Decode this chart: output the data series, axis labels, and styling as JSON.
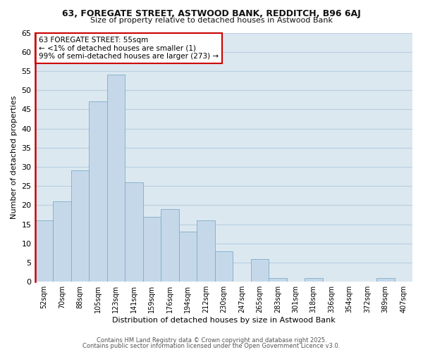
{
  "title_line1": "63, FOREGATE STREET, ASTWOOD BANK, REDDITCH, B96 6AJ",
  "title_line2": "Size of property relative to detached houses in Astwood Bank",
  "xlabel": "Distribution of detached houses by size in Astwood Bank",
  "ylabel": "Number of detached properties",
  "bar_color": "#c5d8ea",
  "bar_edge_color": "#7aadc8",
  "bins": [
    "52sqm",
    "70sqm",
    "88sqm",
    "105sqm",
    "123sqm",
    "141sqm",
    "159sqm",
    "176sqm",
    "194sqm",
    "212sqm",
    "230sqm",
    "247sqm",
    "265sqm",
    "283sqm",
    "301sqm",
    "318sqm",
    "336sqm",
    "354sqm",
    "372sqm",
    "389sqm",
    "407sqm"
  ],
  "values": [
    16,
    21,
    29,
    47,
    54,
    26,
    17,
    19,
    13,
    16,
    8,
    0,
    6,
    1,
    0,
    1,
    0,
    0,
    0,
    1,
    0
  ],
  "ylim": [
    0,
    65
  ],
  "yticks": [
    0,
    5,
    10,
    15,
    20,
    25,
    30,
    35,
    40,
    45,
    50,
    55,
    60,
    65
  ],
  "annotation_title": "63 FOREGATE STREET: 55sqm",
  "annotation_line1": "← <1% of detached houses are smaller (1)",
  "annotation_line2": "99% of semi-detached houses are larger (273) →",
  "annotation_box_facecolor": "#ffffff",
  "annotation_box_edgecolor": "#cc0000",
  "marker_color": "#cc0000",
  "background_color": "#ffffff",
  "plot_bg_color": "#dce8f0",
  "grid_color": "#b8cfe0",
  "footer_line1": "Contains HM Land Registry data © Crown copyright and database right 2025.",
  "footer_line2": "Contains public sector information licensed under the Open Government Licence v3.0."
}
